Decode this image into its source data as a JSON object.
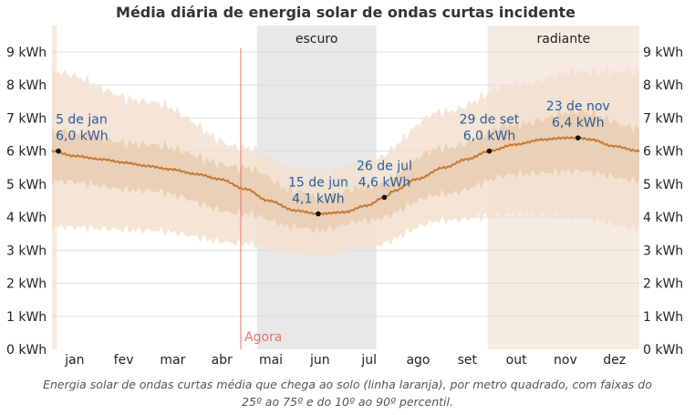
{
  "chart_data": {
    "type": "area",
    "title": "Média diária de energia solar de ondas curtas incidente",
    "unit": "kWh",
    "ylim": [
      0,
      9.8
    ],
    "yticks": [
      0,
      1,
      2,
      3,
      4,
      5,
      6,
      7,
      8,
      9
    ],
    "ytick_labels": [
      "0 kWh",
      "1 kWh",
      "2 kWh",
      "3 kWh",
      "4 kWh",
      "5 kWh",
      "6 kWh",
      "7 kWh",
      "8 kWh",
      "9 kWh"
    ],
    "months": [
      "jan",
      "fev",
      "mar",
      "abr",
      "mai",
      "jun",
      "jul",
      "ago",
      "set",
      "out",
      "nov",
      "dez"
    ],
    "x_unit": "day_of_year",
    "series": [
      {
        "name": "media",
        "color": "#c47a35",
        "x": [
          1,
          15,
          32,
          46,
          60,
          74,
          91,
          105,
          121,
          135,
          152,
          166,
          182,
          196,
          207,
          213,
          227,
          244,
          258,
          272,
          288,
          305,
          319,
          327,
          335,
          349,
          365
        ],
        "values": [
          6.0,
          5.85,
          5.75,
          5.65,
          5.55,
          5.45,
          5.3,
          5.15,
          4.85,
          4.5,
          4.2,
          4.1,
          4.15,
          4.35,
          4.6,
          4.8,
          5.15,
          5.5,
          5.75,
          6.0,
          6.2,
          6.35,
          6.4,
          6.4,
          6.35,
          6.15,
          6.0
        ]
      },
      {
        "name": "p25",
        "x": [
          1,
          60,
          121,
          152,
          166,
          196,
          244,
          288,
          327,
          365
        ],
        "values": [
          5.1,
          4.8,
          4.1,
          3.7,
          3.6,
          3.9,
          4.7,
          5.3,
          5.4,
          5.1
        ]
      },
      {
        "name": "p75",
        "x": [
          1,
          60,
          121,
          152,
          166,
          196,
          244,
          288,
          327,
          365
        ],
        "values": [
          6.6,
          6.2,
          5.5,
          4.8,
          4.6,
          4.9,
          6.1,
          6.8,
          7.2,
          6.7
        ]
      },
      {
        "name": "p10",
        "x": [
          1,
          60,
          121,
          152,
          166,
          196,
          244,
          288,
          327,
          365
        ],
        "values": [
          3.7,
          3.6,
          3.2,
          2.9,
          2.8,
          3.1,
          3.9,
          4.1,
          4.0,
          3.65
        ]
      },
      {
        "name": "p90",
        "x": [
          1,
          60,
          121,
          152,
          166,
          196,
          244,
          288,
          327,
          365
        ],
        "values": [
          8.4,
          7.5,
          6.1,
          5.5,
          5.4,
          5.7,
          7.2,
          8.0,
          8.4,
          8.4
        ]
      }
    ],
    "annotations": [
      {
        "day": 5,
        "value": 6.0,
        "date": "5 de jan",
        "label": "6,0 kWh"
      },
      {
        "day": 166,
        "value": 4.1,
        "date": "15 de jun",
        "label": "4,1 kWh"
      },
      {
        "day": 207,
        "value": 4.6,
        "date": "26 de jul",
        "label": "4,6 kWh"
      },
      {
        "day": 272,
        "value": 6.0,
        "date": "29 de set",
        "label": "6,0 kWh"
      },
      {
        "day": 327,
        "value": 6.4,
        "date": "23 de nov",
        "label": "6,4 kWh"
      }
    ],
    "regions": [
      {
        "label": "escuro",
        "start_day": 128,
        "end_day": 202,
        "color": "#e8e8e8"
      },
      {
        "label": "radiante",
        "start_day": 271,
        "end_day": 365,
        "color": "#f6ebe0"
      },
      {
        "label": "",
        "start_day": 1,
        "end_day": 4,
        "color": "#f6ebe0"
      }
    ],
    "now": {
      "label": "Agora",
      "day": 118,
      "color": "#e8736a"
    },
    "colors": {
      "band90": "#f2e1cf",
      "band75": "#e8cdb0",
      "line": "#c47a35",
      "grid": "#dddddd"
    }
  },
  "caption": {
    "line1": "Energia solar de ondas curtas média que chega ao solo (linha laranja), por metro quadrado, com faixas do",
    "line2": "25º ao 75º e do 10º ao 90º percentil."
  }
}
